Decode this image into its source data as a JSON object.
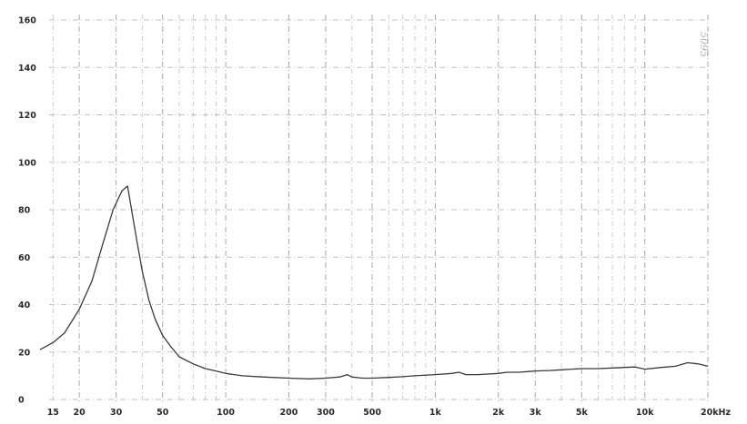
{
  "chart_data": {
    "type": "line",
    "title": "",
    "xlabel": "",
    "ylabel": "",
    "xscale": "log",
    "xlim": [
      13,
      20000
    ],
    "ylim": [
      0,
      160
    ],
    "grid": true,
    "x_ticks": [
      {
        "value": 15,
        "label": "15"
      },
      {
        "value": 20,
        "label": "20"
      },
      {
        "value": 30,
        "label": "30"
      },
      {
        "value": 50,
        "label": "50"
      },
      {
        "value": 100,
        "label": "100"
      },
      {
        "value": 200,
        "label": "200"
      },
      {
        "value": 300,
        "label": "300"
      },
      {
        "value": 500,
        "label": "500"
      },
      {
        "value": 1000,
        "label": "1k"
      },
      {
        "value": 2000,
        "label": "2k"
      },
      {
        "value": 3000,
        "label": "3k"
      },
      {
        "value": 5000,
        "label": "5k"
      },
      {
        "value": 10000,
        "label": "10k"
      },
      {
        "value": 20000,
        "label": "20kHz"
      }
    ],
    "y_ticks": [
      {
        "value": 0,
        "label": "0"
      },
      {
        "value": 20,
        "label": "20"
      },
      {
        "value": 40,
        "label": "40"
      },
      {
        "value": 60,
        "label": "60"
      },
      {
        "value": 80,
        "label": "80"
      },
      {
        "value": 100,
        "label": "100"
      },
      {
        "value": 120,
        "label": "120"
      },
      {
        "value": 140,
        "label": "140"
      },
      {
        "value": 160,
        "label": "160"
      }
    ],
    "annotation": "5095",
    "series": [
      {
        "color": "#3a3a3a",
        "x": [
          13,
          15,
          17,
          20,
          23,
          26,
          29,
          32,
          34,
          36,
          38,
          40,
          43,
          46,
          50,
          55,
          60,
          70,
          80,
          90,
          100,
          120,
          150,
          200,
          250,
          300,
          350,
          380,
          400,
          450,
          500,
          600,
          700,
          800,
          1000,
          1200,
          1300,
          1400,
          1600,
          2000,
          2200,
          2500,
          2800,
          3000,
          3500,
          4000,
          4500,
          5000,
          6000,
          7000,
          8000,
          9000,
          10000,
          12000,
          14000,
          16000,
          18000,
          20000
        ],
        "y": [
          21,
          24,
          28,
          38,
          50,
          66,
          80,
          88,
          90,
          77,
          65,
          54,
          42,
          34,
          27,
          22,
          18,
          15,
          13,
          12,
          11,
          10,
          9.5,
          9,
          8.7,
          9,
          9.5,
          10.5,
          9.5,
          9,
          9,
          9.3,
          9.6,
          10,
          10.5,
          11,
          11.5,
          10.5,
          10.5,
          11,
          11.5,
          11.5,
          11.8,
          12,
          12.2,
          12.5,
          12.8,
          13,
          13,
          13.3,
          13.5,
          13.7,
          12.8,
          13.5,
          14,
          15.5,
          15,
          14
        ]
      }
    ]
  }
}
